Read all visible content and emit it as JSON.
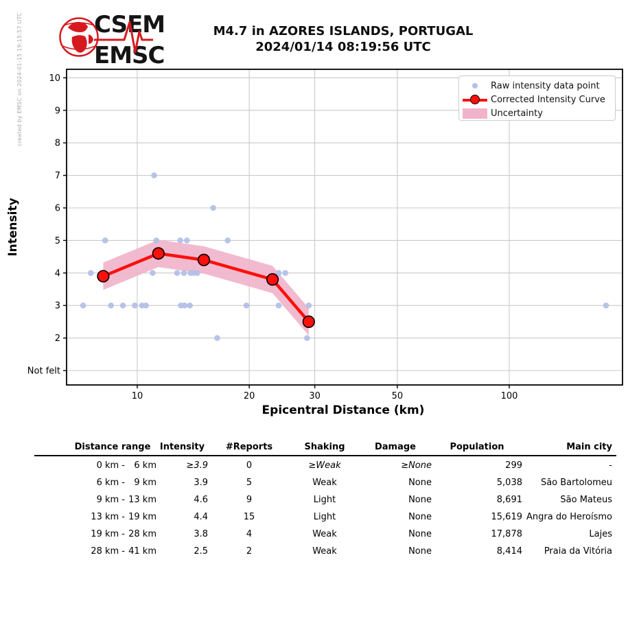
{
  "credit": "created by EMSC on 2024-01-15 19:15:57 UTC",
  "logo": {
    "line1": "CSEM",
    "line2": "EMSC"
  },
  "header": {
    "title_line1": "M4.7 in AZORES ISLANDS, PORTUGAL",
    "title_line2": "2024/01/14 08:19:56 UTC"
  },
  "chart_data": {
    "type": "scatter",
    "title": "",
    "xlabel": "Epicentral Distance (km)",
    "ylabel": "Intensity",
    "x_scale": "log",
    "xlim": [
      6.5,
      201
    ],
    "ylim": [
      0.56,
      10.26
    ],
    "x_ticks": [
      {
        "v": 10,
        "label": "10"
      },
      {
        "v": 20,
        "label": "20"
      },
      {
        "v": 30,
        "label": "30"
      },
      {
        "v": 50,
        "label": "50"
      },
      {
        "v": 100,
        "label": "100"
      }
    ],
    "y_ticks": [
      {
        "v": 1,
        "label": "Not felt"
      },
      {
        "v": 2,
        "label": "2"
      },
      {
        "v": 3,
        "label": "3"
      },
      {
        "v": 4,
        "label": "4"
      },
      {
        "v": 5,
        "label": "5"
      },
      {
        "v": 6,
        "label": "6"
      },
      {
        "v": 7,
        "label": "7"
      },
      {
        "v": 8,
        "label": "8"
      },
      {
        "v": 9,
        "label": "9"
      },
      {
        "v": 10,
        "label": "10"
      }
    ],
    "legend": [
      {
        "marker": "dot",
        "label": "Raw intensity data point"
      },
      {
        "marker": "line",
        "label": "Corrected Intensity Curve"
      },
      {
        "marker": "patch",
        "label": "Uncertainty"
      }
    ],
    "raw_points": [
      {
        "d": 11.1,
        "i": 7
      },
      {
        "d": 16.0,
        "i": 6
      },
      {
        "d": 8.2,
        "i": 5
      },
      {
        "d": 11.25,
        "i": 5
      },
      {
        "d": 13.05,
        "i": 5
      },
      {
        "d": 13.6,
        "i": 5
      },
      {
        "d": 17.5,
        "i": 5
      },
      {
        "d": 7.5,
        "i": 4
      },
      {
        "d": 11.0,
        "i": 4
      },
      {
        "d": 12.8,
        "i": 4
      },
      {
        "d": 13.35,
        "i": 4
      },
      {
        "d": 13.9,
        "i": 4
      },
      {
        "d": 14.2,
        "i": 4
      },
      {
        "d": 14.5,
        "i": 4
      },
      {
        "d": 24.0,
        "i": 4
      },
      {
        "d": 25.0,
        "i": 4
      },
      {
        "d": 7.15,
        "i": 3
      },
      {
        "d": 8.5,
        "i": 3
      },
      {
        "d": 9.15,
        "i": 3
      },
      {
        "d": 9.85,
        "i": 3
      },
      {
        "d": 10.3,
        "i": 3
      },
      {
        "d": 10.55,
        "i": 3
      },
      {
        "d": 13.1,
        "i": 3
      },
      {
        "d": 13.4,
        "i": 3
      },
      {
        "d": 13.85,
        "i": 3
      },
      {
        "d": 19.65,
        "i": 3
      },
      {
        "d": 24.0,
        "i": 3
      },
      {
        "d": 28.9,
        "i": 3
      },
      {
        "d": 182,
        "i": 3
      },
      {
        "d": 16.4,
        "i": 2
      },
      {
        "d": 28.6,
        "i": 2
      }
    ],
    "curve": [
      {
        "d": 8.1,
        "i": 3.9
      },
      {
        "d": 11.4,
        "i": 4.6
      },
      {
        "d": 15.1,
        "i": 4.4
      },
      {
        "d": 23.1,
        "i": 3.8
      },
      {
        "d": 28.9,
        "i": 2.5
      }
    ],
    "uncertainty_halfwidth": 0.42,
    "colors": {
      "raw_point": "#b3c1e7",
      "curve": "#fb100c",
      "uncertainty": "#f1b3ca",
      "grid": "#c9c9c9"
    }
  },
  "table": {
    "headers": [
      "Distance range",
      "Intensity",
      "#Reports",
      "Shaking",
      "Damage",
      "Population",
      "Main city"
    ],
    "rows": [
      {
        "range_a": "0 km -",
        "range_b": "6 km",
        "intensity": "≥3.9",
        "reports": "0",
        "shaking": "≥Weak",
        "damage": "≥None",
        "population": "299",
        "city": "-",
        "estimated": true
      },
      {
        "range_a": "6 km -",
        "range_b": "9 km",
        "intensity": "3.9",
        "reports": "5",
        "shaking": "Weak",
        "damage": "None",
        "population": "5,038",
        "city": "São Bartolomeu",
        "estimated": false
      },
      {
        "range_a": "9 km -",
        "range_b": "13 km",
        "intensity": "4.6",
        "reports": "9",
        "shaking": "Light",
        "damage": "None",
        "population": "8,691",
        "city": "São Mateus",
        "estimated": false
      },
      {
        "range_a": "13 km -",
        "range_b": "19 km",
        "intensity": "4.4",
        "reports": "15",
        "shaking": "Light",
        "damage": "None",
        "population": "15,619",
        "city": "Angra do Heroísmo",
        "estimated": false
      },
      {
        "range_a": "19 km -",
        "range_b": "28 km",
        "intensity": "3.8",
        "reports": "4",
        "shaking": "Weak",
        "damage": "None",
        "population": "17,878",
        "city": "Lajes",
        "estimated": false
      },
      {
        "range_a": "28 km -",
        "range_b": "41 km",
        "intensity": "2.5",
        "reports": "2",
        "shaking": "Weak",
        "damage": "None",
        "population": "8,414",
        "city": "Praia da Vitória",
        "estimated": false
      }
    ]
  }
}
